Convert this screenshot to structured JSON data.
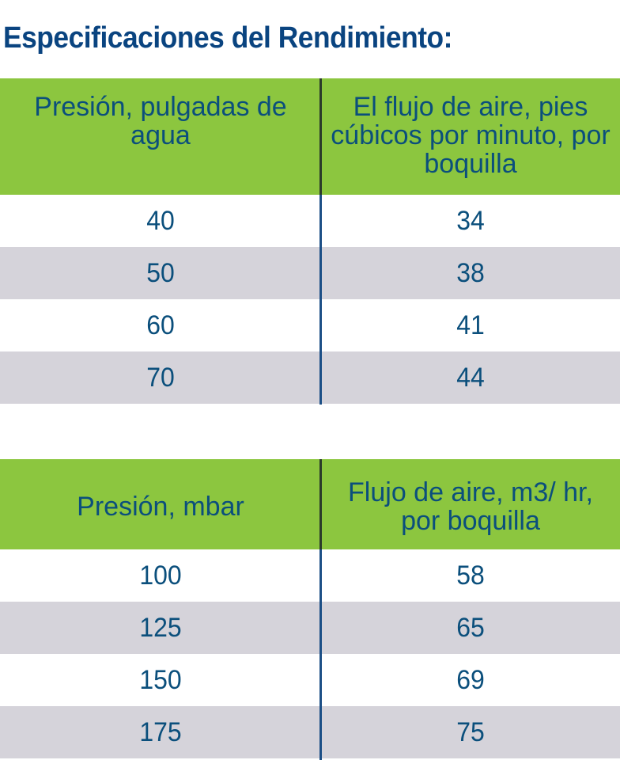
{
  "title": "Especificaciones del Rendimiento:",
  "tables": [
    {
      "headers": [
        "Presión, pulgadas de agua",
        "El flujo de aire, pies cúbicos por minuto, por boquilla"
      ],
      "rows": [
        [
          "40",
          "34"
        ],
        [
          "50",
          "38"
        ],
        [
          "60",
          "41"
        ],
        [
          "70",
          "44"
        ]
      ]
    },
    {
      "headers": [
        "Presión, mbar",
        "Flujo de aire, m3/ hr, por boquilla"
      ],
      "rows": [
        [
          "100",
          "58"
        ],
        [
          "125",
          "65"
        ],
        [
          "150",
          "69"
        ],
        [
          "175",
          "75"
        ]
      ]
    }
  ],
  "colors": {
    "title": "#0a4480",
    "header_bg": "#8cc63f",
    "text": "#0b4f7c",
    "alt_row_bg": "#d5d3da",
    "divider": "#1c4f86"
  }
}
